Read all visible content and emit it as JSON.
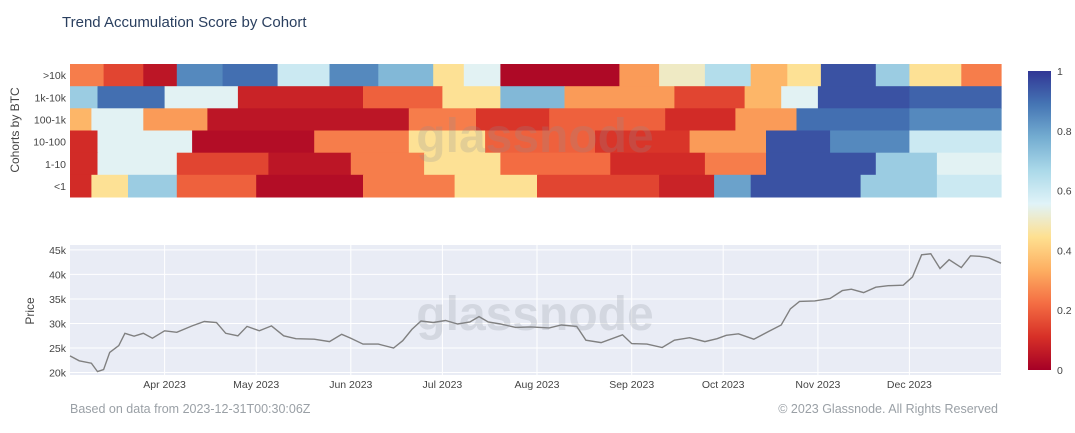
{
  "title": "Trend Accumulation Score by Cohort",
  "footer": {
    "left": "Based on data from 2023-12-31T00:30:06Z",
    "right": "© 2023 Glassnode. All Rights Reserved"
  },
  "watermark": "glassnode",
  "chart_data": [
    {
      "type": "heatmap",
      "title": "",
      "ylabel": "Cohorts by BTC",
      "x_range": [
        "2023-03-01",
        "2023-12-31"
      ],
      "x_ticks": [
        "Apr 2023",
        "May 2023",
        "Jun 2023",
        "Jul 2023",
        "Aug 2023",
        "Sep 2023",
        "Oct 2023",
        "Nov 2023",
        "Dec 2023"
      ],
      "x_tick_dates": [
        "2023-04-01",
        "2023-05-01",
        "2023-06-01",
        "2023-07-01",
        "2023-08-01",
        "2023-09-01",
        "2023-10-01",
        "2023-11-01",
        "2023-12-01"
      ],
      "rows": [
        {
          "label": ">10k",
          "segments": [
            {
              "start": "2023-03-01",
              "end": "2023-03-12",
              "value": 0.25
            },
            {
              "start": "2023-03-12",
              "end": "2023-03-25",
              "value": 0.15
            },
            {
              "start": "2023-03-25",
              "end": "2023-04-05",
              "value": 0.05
            },
            {
              "start": "2023-04-05",
              "end": "2023-04-20",
              "value": 0.85
            },
            {
              "start": "2023-04-20",
              "end": "2023-05-08",
              "value": 0.9
            },
            {
              "start": "2023-05-08",
              "end": "2023-05-25",
              "value": 0.6
            },
            {
              "start": "2023-05-25",
              "end": "2023-06-10",
              "value": 0.85
            },
            {
              "start": "2023-06-10",
              "end": "2023-06-28",
              "value": 0.75
            },
            {
              "start": "2023-06-28",
              "end": "2023-07-08",
              "value": 0.45
            },
            {
              "start": "2023-07-08",
              "end": "2023-07-20",
              "value": 0.55
            },
            {
              "start": "2023-07-20",
              "end": "2023-08-28",
              "value": 0.02
            },
            {
              "start": "2023-08-28",
              "end": "2023-09-10",
              "value": 0.3
            },
            {
              "start": "2023-09-10",
              "end": "2023-09-25",
              "value": 0.5
            },
            {
              "start": "2023-09-25",
              "end": "2023-10-10",
              "value": 0.65
            },
            {
              "start": "2023-10-10",
              "end": "2023-10-22",
              "value": 0.35
            },
            {
              "start": "2023-10-22",
              "end": "2023-11-02",
              "value": 0.45
            },
            {
              "start": "2023-11-02",
              "end": "2023-11-20",
              "value": 0.95
            },
            {
              "start": "2023-11-20",
              "end": "2023-12-01",
              "value": 0.7
            },
            {
              "start": "2023-12-01",
              "end": "2023-12-18",
              "value": 0.45
            },
            {
              "start": "2023-12-18",
              "end": "2023-12-31",
              "value": 0.25
            }
          ]
        },
        {
          "label": "1k-10k",
          "segments": [
            {
              "start": "2023-03-01",
              "end": "2023-03-10",
              "value": 0.7
            },
            {
              "start": "2023-03-10",
              "end": "2023-04-01",
              "value": 0.9
            },
            {
              "start": "2023-04-01",
              "end": "2023-04-25",
              "value": 0.55
            },
            {
              "start": "2023-04-25",
              "end": "2023-06-05",
              "value": 0.08
            },
            {
              "start": "2023-06-05",
              "end": "2023-07-01",
              "value": 0.2
            },
            {
              "start": "2023-07-01",
              "end": "2023-07-20",
              "value": 0.45
            },
            {
              "start": "2023-07-20",
              "end": "2023-08-10",
              "value": 0.75
            },
            {
              "start": "2023-08-10",
              "end": "2023-09-15",
              "value": 0.3
            },
            {
              "start": "2023-09-15",
              "end": "2023-10-08",
              "value": 0.15
            },
            {
              "start": "2023-10-08",
              "end": "2023-10-20",
              "value": 0.35
            },
            {
              "start": "2023-10-20",
              "end": "2023-11-01",
              "value": 0.55
            },
            {
              "start": "2023-11-01",
              "end": "2023-12-01",
              "value": 0.95
            },
            {
              "start": "2023-12-01",
              "end": "2023-12-31",
              "value": 0.92
            }
          ]
        },
        {
          "label": "100-1k",
          "segments": [
            {
              "start": "2023-03-01",
              "end": "2023-03-08",
              "value": 0.35
            },
            {
              "start": "2023-03-08",
              "end": "2023-03-25",
              "value": 0.55
            },
            {
              "start": "2023-03-25",
              "end": "2023-04-15",
              "value": 0.3
            },
            {
              "start": "2023-04-15",
              "end": "2023-06-20",
              "value": 0.05
            },
            {
              "start": "2023-06-20",
              "end": "2023-07-12",
              "value": 0.25
            },
            {
              "start": "2023-07-12",
              "end": "2023-08-05",
              "value": 0.12
            },
            {
              "start": "2023-08-05",
              "end": "2023-09-12",
              "value": 0.2
            },
            {
              "start": "2023-09-12",
              "end": "2023-10-05",
              "value": 0.1
            },
            {
              "start": "2023-10-05",
              "end": "2023-10-25",
              "value": 0.3
            },
            {
              "start": "2023-10-25",
              "end": "2023-12-01",
              "value": 0.9
            },
            {
              "start": "2023-12-01",
              "end": "2023-12-31",
              "value": 0.85
            }
          ]
        },
        {
          "label": "10-100",
          "segments": [
            {
              "start": "2023-03-01",
              "end": "2023-03-10",
              "value": 0.1
            },
            {
              "start": "2023-03-10",
              "end": "2023-04-10",
              "value": 0.55
            },
            {
              "start": "2023-04-10",
              "end": "2023-05-20",
              "value": 0.03
            },
            {
              "start": "2023-05-20",
              "end": "2023-06-20",
              "value": 0.25
            },
            {
              "start": "2023-06-20",
              "end": "2023-07-15",
              "value": 0.45
            },
            {
              "start": "2023-07-15",
              "end": "2023-08-20",
              "value": 0.2
            },
            {
              "start": "2023-08-20",
              "end": "2023-09-20",
              "value": 0.12
            },
            {
              "start": "2023-09-20",
              "end": "2023-10-15",
              "value": 0.3
            },
            {
              "start": "2023-10-15",
              "end": "2023-11-05",
              "value": 0.95
            },
            {
              "start": "2023-11-05",
              "end": "2023-12-01",
              "value": 0.85
            },
            {
              "start": "2023-12-01",
              "end": "2023-12-31",
              "value": 0.6
            }
          ]
        },
        {
          "label": "1-10",
          "segments": [
            {
              "start": "2023-03-01",
              "end": "2023-03-10",
              "value": 0.1
            },
            {
              "start": "2023-03-10",
              "end": "2023-04-05",
              "value": 0.55
            },
            {
              "start": "2023-04-05",
              "end": "2023-05-05",
              "value": 0.15
            },
            {
              "start": "2023-05-05",
              "end": "2023-06-01",
              "value": 0.05
            },
            {
              "start": "2023-06-01",
              "end": "2023-06-25",
              "value": 0.25
            },
            {
              "start": "2023-06-25",
              "end": "2023-07-20",
              "value": 0.45
            },
            {
              "start": "2023-07-20",
              "end": "2023-08-25",
              "value": 0.22
            },
            {
              "start": "2023-08-25",
              "end": "2023-09-25",
              "value": 0.1
            },
            {
              "start": "2023-09-25",
              "end": "2023-10-15",
              "value": 0.25
            },
            {
              "start": "2023-10-15",
              "end": "2023-11-20",
              "value": 0.95
            },
            {
              "start": "2023-11-20",
              "end": "2023-12-10",
              "value": 0.7
            },
            {
              "start": "2023-12-10",
              "end": "2023-12-31",
              "value": 0.55
            }
          ]
        },
        {
          "label": "<1",
          "segments": [
            {
              "start": "2023-03-01",
              "end": "2023-03-08",
              "value": 0.1
            },
            {
              "start": "2023-03-08",
              "end": "2023-03-20",
              "value": 0.45
            },
            {
              "start": "2023-03-20",
              "end": "2023-04-05",
              "value": 0.7
            },
            {
              "start": "2023-04-05",
              "end": "2023-05-01",
              "value": 0.2
            },
            {
              "start": "2023-05-01",
              "end": "2023-06-05",
              "value": 0.03
            },
            {
              "start": "2023-06-05",
              "end": "2023-07-05",
              "value": 0.25
            },
            {
              "start": "2023-07-05",
              "end": "2023-08-01",
              "value": 0.45
            },
            {
              "start": "2023-08-01",
              "end": "2023-09-10",
              "value": 0.15
            },
            {
              "start": "2023-09-10",
              "end": "2023-09-28",
              "value": 0.08
            },
            {
              "start": "2023-09-28",
              "end": "2023-10-10",
              "value": 0.8
            },
            {
              "start": "2023-10-10",
              "end": "2023-11-15",
              "value": 0.95
            },
            {
              "start": "2023-11-15",
              "end": "2023-12-10",
              "value": 0.7
            },
            {
              "start": "2023-12-10",
              "end": "2023-12-31",
              "value": 0.6
            }
          ]
        }
      ],
      "zlim": [
        0,
        1
      ],
      "colorbar_ticks": [
        "0",
        "0.2",
        "0.4",
        "0.6",
        "0.8",
        "1"
      ],
      "colorscale": [
        "#a50026",
        "#d73027",
        "#f46d43",
        "#fdae61",
        "#fee090",
        "#e0f3f8",
        "#abd9e9",
        "#74add1",
        "#4575b4",
        "#313695"
      ]
    },
    {
      "type": "line",
      "title": "",
      "ylabel": "Price",
      "ylim": [
        19500,
        46000
      ],
      "y_ticks": [
        {
          "value": 20000,
          "label": "20k"
        },
        {
          "value": 25000,
          "label": "25k"
        },
        {
          "value": 30000,
          "label": "30k"
        },
        {
          "value": 35000,
          "label": "35k"
        },
        {
          "value": 40000,
          "label": "40k"
        },
        {
          "value": 45000,
          "label": "45k"
        }
      ],
      "grid": true,
      "series": [
        {
          "color": "#808080",
          "points": [
            [
              "2023-03-01",
              23400
            ],
            [
              "2023-03-04",
              22400
            ],
            [
              "2023-03-08",
              21900
            ],
            [
              "2023-03-10",
              20200
            ],
            [
              "2023-03-12",
              20600
            ],
            [
              "2023-03-14",
              24100
            ],
            [
              "2023-03-17",
              25500
            ],
            [
              "2023-03-19",
              28000
            ],
            [
              "2023-03-22",
              27400
            ],
            [
              "2023-03-25",
              28000
            ],
            [
              "2023-03-28",
              27000
            ],
            [
              "2023-04-01",
              28500
            ],
            [
              "2023-04-05",
              28200
            ],
            [
              "2023-04-10",
              29500
            ],
            [
              "2023-04-14",
              30400
            ],
            [
              "2023-04-18",
              30200
            ],
            [
              "2023-04-21",
              28000
            ],
            [
              "2023-04-25",
              27500
            ],
            [
              "2023-04-28",
              29400
            ],
            [
              "2023-05-02",
              28500
            ],
            [
              "2023-05-06",
              29500
            ],
            [
              "2023-05-10",
              27500
            ],
            [
              "2023-05-14",
              26900
            ],
            [
              "2023-05-20",
              26800
            ],
            [
              "2023-05-25",
              26300
            ],
            [
              "2023-05-29",
              27800
            ],
            [
              "2023-06-01",
              27000
            ],
            [
              "2023-06-05",
              25800
            ],
            [
              "2023-06-10",
              25800
            ],
            [
              "2023-06-15",
              25000
            ],
            [
              "2023-06-18",
              26500
            ],
            [
              "2023-06-21",
              28800
            ],
            [
              "2023-06-24",
              30500
            ],
            [
              "2023-06-28",
              30200
            ],
            [
              "2023-07-02",
              30600
            ],
            [
              "2023-07-06",
              29900
            ],
            [
              "2023-07-10",
              30300
            ],
            [
              "2023-07-13",
              31400
            ],
            [
              "2023-07-16",
              30300
            ],
            [
              "2023-07-20",
              29900
            ],
            [
              "2023-07-25",
              29200
            ],
            [
              "2023-07-30",
              29300
            ],
            [
              "2023-08-05",
              29100
            ],
            [
              "2023-08-09",
              29700
            ],
            [
              "2023-08-14",
              29400
            ],
            [
              "2023-08-17",
              26600
            ],
            [
              "2023-08-22",
              26100
            ],
            [
              "2023-08-29",
              27700
            ],
            [
              "2023-09-01",
              25900
            ],
            [
              "2023-09-06",
              25800
            ],
            [
              "2023-09-11",
              25100
            ],
            [
              "2023-09-15",
              26600
            ],
            [
              "2023-09-20",
              27100
            ],
            [
              "2023-09-25",
              26300
            ],
            [
              "2023-09-29",
              26900
            ],
            [
              "2023-10-02",
              27600
            ],
            [
              "2023-10-06",
              27900
            ],
            [
              "2023-10-11",
              26800
            ],
            [
              "2023-10-16",
              28400
            ],
            [
              "2023-10-20",
              29700
            ],
            [
              "2023-10-23",
              33000
            ],
            [
              "2023-10-26",
              34500
            ],
            [
              "2023-10-31",
              34600
            ],
            [
              "2023-11-05",
              35100
            ],
            [
              "2023-11-09",
              36700
            ],
            [
              "2023-11-12",
              37000
            ],
            [
              "2023-11-16",
              36300
            ],
            [
              "2023-11-20",
              37400
            ],
            [
              "2023-11-24",
              37700
            ],
            [
              "2023-11-29",
              37800
            ],
            [
              "2023-12-02",
              39500
            ],
            [
              "2023-12-05",
              44000
            ],
            [
              "2023-12-08",
              44200
            ],
            [
              "2023-12-11",
              41200
            ],
            [
              "2023-12-14",
              43000
            ],
            [
              "2023-12-18",
              41400
            ],
            [
              "2023-12-21",
              43800
            ],
            [
              "2023-12-24",
              43700
            ],
            [
              "2023-12-27",
              43400
            ],
            [
              "2023-12-31",
              42300
            ]
          ]
        }
      ]
    }
  ]
}
